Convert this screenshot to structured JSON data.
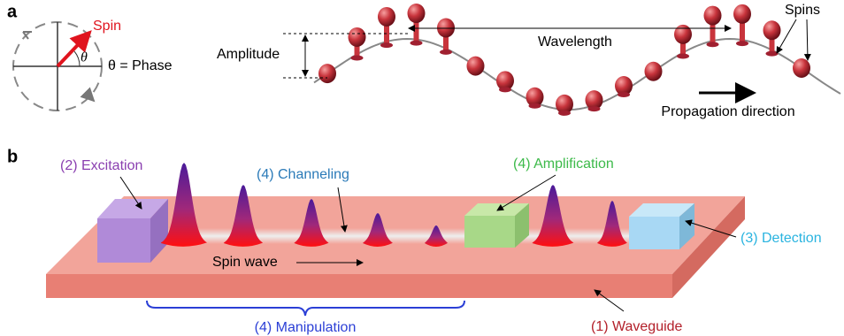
{
  "panel_a": {
    "label": "a",
    "spin": "Spin",
    "theta": "θ",
    "phase_label": "θ = Phase",
    "amplitude": "Amplitude",
    "wavelength": "Wavelength",
    "spins": "Spins",
    "propagation": "Propagation direction"
  },
  "panel_b": {
    "label": "b",
    "excitation": "(2) Excitation",
    "channeling": "(4) Channeling",
    "amplification": "(4) Amplification",
    "detection": "(3) Detection",
    "spin_wave": "Spin wave",
    "manipulation": "(4) Manipulation",
    "waveguide": "(1) Waveguide"
  }
}
